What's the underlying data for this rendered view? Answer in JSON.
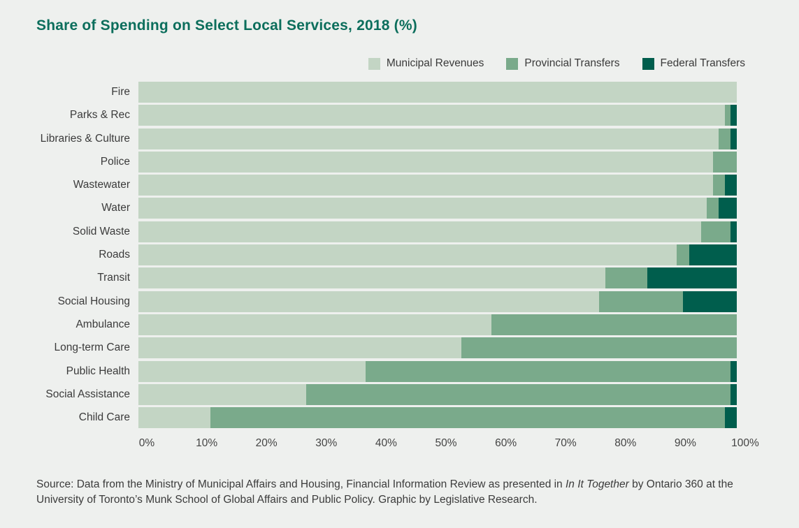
{
  "page": {
    "title": "Share of Spending on Select Local Services, 2018 (%)"
  },
  "legend": {
    "items": [
      {
        "label": "Municipal Revenues",
        "color": "#c3d5c4"
      },
      {
        "label": "Provincial Transfers",
        "color": "#7aaa8b"
      },
      {
        "label": "Federal Transfers",
        "color": "#005e4d"
      }
    ]
  },
  "chart_data": {
    "type": "bar",
    "orientation": "horizontal",
    "stacked": true,
    "title": "Share of Spending on Select Local Services, 2018 (%)",
    "categories": [
      "Fire",
      "Parks & Rec",
      "Libraries & Culture",
      "Police",
      "Wastewater",
      "Water",
      "Solid Waste",
      "Roads",
      "Transit",
      "Social Housing",
      "Ambulance",
      "Long-term Care",
      "Public Health",
      "Social Assistance",
      "Child Care"
    ],
    "series": [
      {
        "name": "Municipal Revenues",
        "color": "#c3d5c4",
        "values": [
          100,
          98,
          97,
          96,
          96,
          95,
          94,
          90,
          78,
          77,
          59,
          54,
          38,
          28,
          12
        ]
      },
      {
        "name": "Provincial Transfers",
        "color": "#7aaa8b",
        "values": [
          0,
          1,
          2,
          4,
          2,
          2,
          5,
          2,
          7,
          14,
          41,
          46,
          61,
          71,
          86
        ]
      },
      {
        "name": "Federal Transfers",
        "color": "#005e4d",
        "values": [
          0,
          1,
          1,
          0,
          2,
          3,
          1,
          8,
          15,
          9,
          0,
          0,
          1,
          1,
          2
        ]
      }
    ],
    "x_ticks": [
      "0%",
      "10%",
      "20%",
      "30%",
      "40%",
      "50%",
      "60%",
      "70%",
      "80%",
      "90%",
      "100%"
    ],
    "xlim": [
      0,
      100
    ],
    "xlabel": "",
    "ylabel": "",
    "grid": false,
    "legend_position": "top-right"
  },
  "source": {
    "prefix": "Source: Data from the Ministry of Municipal Affairs and Housing, Financial Information Review as presented in ",
    "italic": "In It Together",
    "suffix": " by Ontario 360 at the University of Toronto’s Munk School of Global Affairs and Public Policy. Graphic by Legislative Research."
  }
}
